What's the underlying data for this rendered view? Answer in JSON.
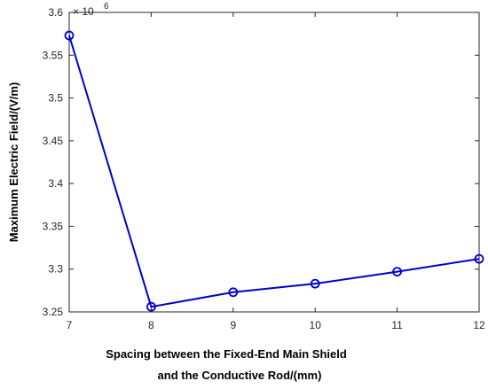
{
  "chart_data": {
    "type": "line",
    "title": "",
    "xlabel_lines": [
      "Spacing between the Fixed-End Main Shield",
      "and the Conductive Rod/(mm)"
    ],
    "ylabel": "Maximum Electric Field/(V/m)",
    "x": [
      7,
      8,
      9,
      10,
      11,
      12
    ],
    "series": [
      {
        "values": [
          3.573,
          3.256,
          3.273,
          3.283,
          3.297,
          3.312
        ],
        "marker": "circle",
        "color": "#0000cc"
      }
    ],
    "xlim": [
      7,
      12
    ],
    "ylim": [
      3.25,
      3.6
    ],
    "xticks": [
      7,
      8,
      9,
      10,
      11,
      12
    ],
    "yticks": [
      3.25,
      3.3,
      3.35,
      3.4,
      3.45,
      3.5,
      3.55,
      3.6
    ],
    "ytick_labels": [
      "3.25",
      "3.3",
      "3.35",
      "3.4",
      "3.45",
      "3.5",
      "3.55",
      "3.6"
    ],
    "y_multiplier": {
      "base": "× 10",
      "exponent": "6"
    },
    "grid": false
  }
}
